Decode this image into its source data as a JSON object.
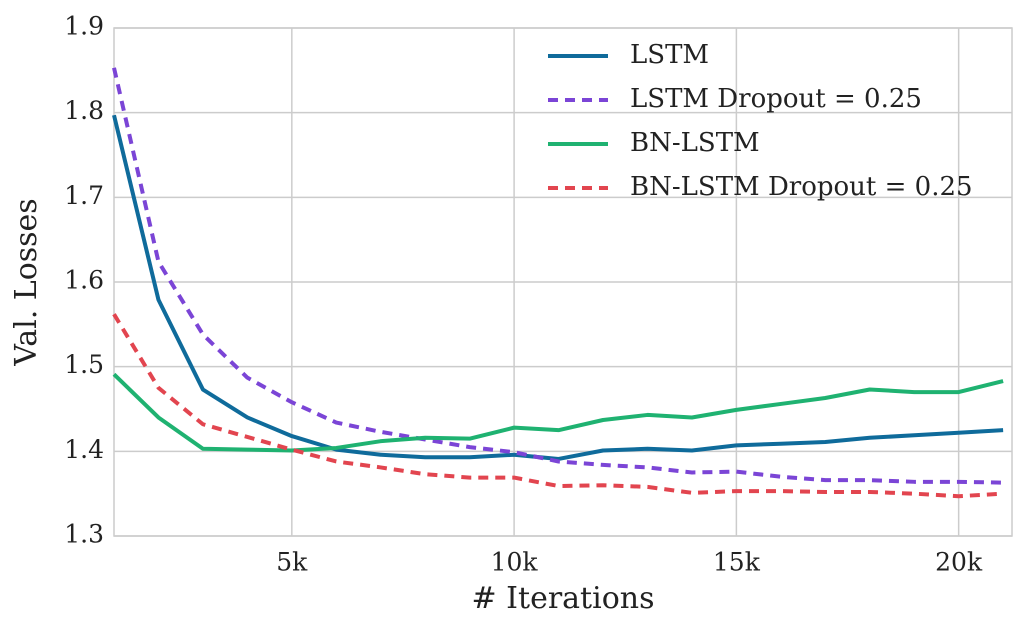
{
  "chart_data": {
    "type": "line",
    "x_label": "# Iterations",
    "y_label": "Val. Losses",
    "x": [
      1000,
      2000,
      3000,
      4000,
      5000,
      6000,
      7000,
      8000,
      9000,
      10000,
      11000,
      12000,
      13000,
      14000,
      15000,
      16000,
      17000,
      18000,
      19000,
      20000,
      21000
    ],
    "series": [
      {
        "name": "LSTM",
        "color": "#0f6b9b",
        "dash": false,
        "values": [
          1.797,
          1.579,
          1.473,
          1.44,
          1.418,
          1.402,
          1.396,
          1.393,
          1.393,
          1.396,
          1.391,
          1.401,
          1.403,
          1.401,
          1.407,
          1.409,
          1.411,
          1.416,
          1.419,
          1.422,
          1.425
        ]
      },
      {
        "name": "LSTM Dropout = 0.25",
        "color": "#7b45d6",
        "dash": true,
        "values": [
          1.853,
          1.624,
          1.538,
          1.487,
          1.458,
          1.434,
          1.423,
          1.414,
          1.405,
          1.399,
          1.388,
          1.384,
          1.381,
          1.375,
          1.376,
          1.37,
          1.366,
          1.366,
          1.364,
          1.364,
          1.363
        ]
      },
      {
        "name": "BN-LSTM",
        "color": "#1fb271",
        "dash": false,
        "values": [
          1.491,
          1.44,
          1.403,
          1.402,
          1.401,
          1.404,
          1.412,
          1.416,
          1.415,
          1.428,
          1.425,
          1.437,
          1.443,
          1.44,
          1.449,
          1.456,
          1.463,
          1.473,
          1.47,
          1.47,
          1.483
        ]
      },
      {
        "name": "BN-LSTM Dropout = 0.25",
        "color": "#e2454f",
        "dash": true,
        "values": [
          1.562,
          1.475,
          1.432,
          1.417,
          1.402,
          1.388,
          1.381,
          1.373,
          1.369,
          1.369,
          1.359,
          1.36,
          1.358,
          1.351,
          1.353,
          1.353,
          1.352,
          1.352,
          1.35,
          1.347,
          1.35
        ]
      }
    ],
    "xlim": [
      1000,
      21200
    ],
    "xticks": [
      {
        "value": 5000,
        "label": "5k"
      },
      {
        "value": 10000,
        "label": "10k"
      },
      {
        "value": 15000,
        "label": "15k"
      },
      {
        "value": 20000,
        "label": "20k"
      }
    ],
    "ylim": [
      1.3,
      1.9
    ],
    "yticks": [
      1.3,
      1.4,
      1.5,
      1.6,
      1.7,
      1.8,
      1.9
    ],
    "grid": true,
    "legend": "upper right"
  }
}
